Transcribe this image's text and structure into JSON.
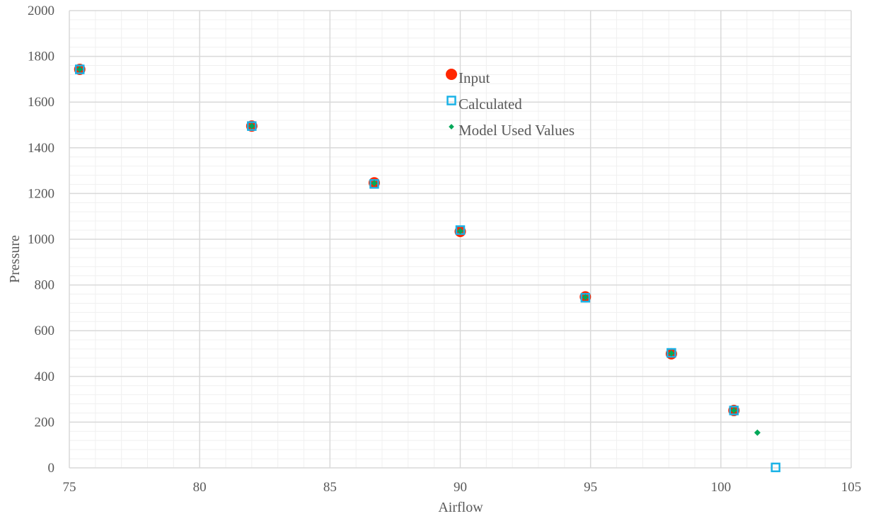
{
  "chart_data": {
    "type": "scatter",
    "xlabel": "Airflow",
    "ylabel": "Pressure",
    "xlim": [
      75,
      105
    ],
    "ylim": [
      0,
      2000
    ],
    "x_major_step": 5,
    "x_minor_step": 1,
    "y_major_step": 200,
    "y_minor_step": 40,
    "x_ticks": [
      "75",
      "80",
      "85",
      "90",
      "95",
      "100",
      "105"
    ],
    "y_ticks": [
      "0",
      "200",
      "400",
      "600",
      "800",
      "1000",
      "1200",
      "1400",
      "1600",
      "1800",
      "2000"
    ],
    "grid": true,
    "legend_position": "top-center",
    "series": [
      {
        "name": "Input",
        "marker": "circle",
        "color": "#ff2600",
        "points": [
          {
            "x": 75.4,
            "y": 1743
          },
          {
            "x": 82.0,
            "y": 1495
          },
          {
            "x": 86.7,
            "y": 1247
          },
          {
            "x": 90.0,
            "y": 1034
          },
          {
            "x": 94.8,
            "y": 748
          },
          {
            "x": 98.1,
            "y": 499
          },
          {
            "x": 100.5,
            "y": 251
          }
        ]
      },
      {
        "name": "Calculated",
        "marker": "square-open",
        "color": "#1ab2e6",
        "points": [
          {
            "x": 75.4,
            "y": 1743
          },
          {
            "x": 82.0,
            "y": 1495
          },
          {
            "x": 86.7,
            "y": 1242
          },
          {
            "x": 90.0,
            "y": 1040
          },
          {
            "x": 94.8,
            "y": 744
          },
          {
            "x": 98.1,
            "y": 503
          },
          {
            "x": 100.5,
            "y": 251
          },
          {
            "x": 102.1,
            "y": 2
          }
        ]
      },
      {
        "name": "Model Used Values",
        "marker": "diamond",
        "color": "#00a859",
        "points": [
          {
            "x": 75.4,
            "y": 1743
          },
          {
            "x": 82.0,
            "y": 1495
          },
          {
            "x": 86.7,
            "y": 1245
          },
          {
            "x": 90.0,
            "y": 1036
          },
          {
            "x": 94.8,
            "y": 746
          },
          {
            "x": 98.1,
            "y": 501
          },
          {
            "x": 100.5,
            "y": 251
          },
          {
            "x": 101.4,
            "y": 154
          }
        ]
      }
    ]
  }
}
